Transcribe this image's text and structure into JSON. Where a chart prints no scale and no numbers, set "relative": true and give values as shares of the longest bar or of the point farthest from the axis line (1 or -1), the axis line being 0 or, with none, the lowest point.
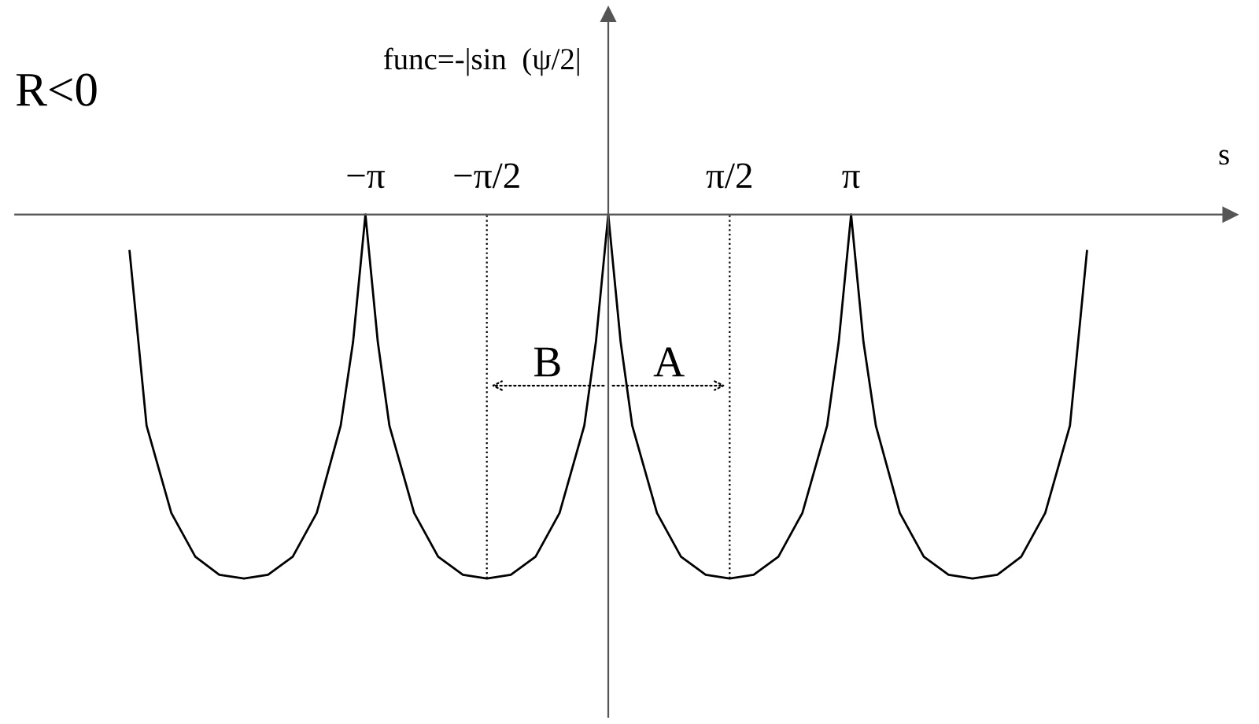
{
  "chart_data": {
    "type": "line",
    "relative": true,
    "ylabel": "func=-|sin  (ψ/2|",
    "xlabel": "s",
    "annotations": [
      "R<0",
      "B",
      "A"
    ],
    "xlim": [
      -7.67,
      8.04
    ],
    "xticks": [
      {
        "value": -3.14,
        "label": "−π"
      },
      {
        "value": -1.57,
        "label": "−π/2"
      },
      {
        "value": 1.57,
        "label": "π/2"
      },
      {
        "value": 3.14,
        "label": "π"
      }
    ],
    "ref_lines": [
      {
        "axis": "x",
        "value": -1.57,
        "line_style": "dotted"
      },
      {
        "axis": "x",
        "value": 1.57,
        "line_style": "dotted"
      }
    ],
    "grid": false,
    "marker": "none",
    "line_style": "solid",
    "series": [
      {
        "color": "#000000",
        "x": [
          -6.19,
          -5.97,
          -5.65,
          -5.34,
          -5.03,
          -4.71,
          -4.4,
          -4.08,
          -3.77,
          -3.46,
          -3.3,
          -3.14,
          -2.98,
          -2.83,
          -2.51,
          -2.2,
          -1.88,
          -1.57,
          -1.26,
          -0.94,
          -0.63,
          -0.31,
          -0.16,
          0,
          0.16,
          0.31,
          0.63,
          0.94,
          1.26,
          1.57,
          1.88,
          2.2,
          2.51,
          2.83,
          2.98,
          3.14,
          3.3,
          3.46,
          3.77,
          4.08,
          4.4,
          4.71,
          5.03,
          5.34,
          5.65,
          5.97,
          6.19
        ],
        "values": [
          -0.1,
          -0.58,
          -0.82,
          -0.94,
          -0.99,
          -1,
          -0.99,
          -0.94,
          -0.82,
          -0.58,
          -0.35,
          0,
          -0.35,
          -0.58,
          -0.82,
          -0.94,
          -0.99,
          -1,
          -0.99,
          -0.94,
          -0.82,
          -0.58,
          -0.35,
          0,
          -0.35,
          -0.58,
          -0.82,
          -0.94,
          -0.99,
          -1,
          -0.99,
          -0.94,
          -0.82,
          -0.58,
          -0.35,
          0,
          -0.35,
          -0.58,
          -0.82,
          -0.94,
          -0.99,
          -1,
          -0.99,
          -0.94,
          -0.82,
          -0.58,
          -0.1
        ]
      }
    ]
  }
}
